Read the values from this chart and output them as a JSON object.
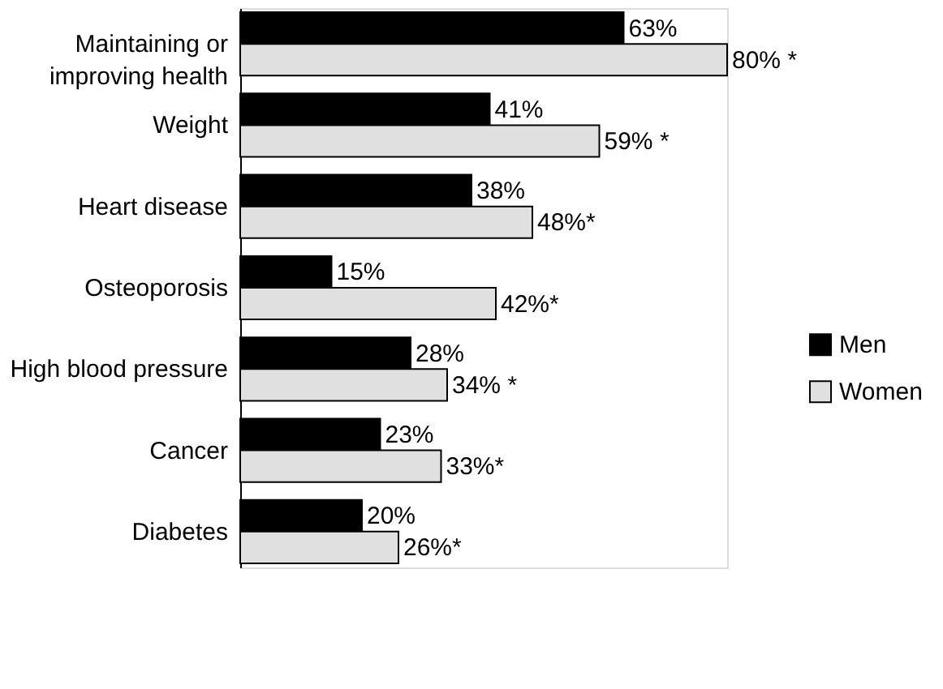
{
  "chart_data": {
    "type": "bar",
    "orientation": "horizontal",
    "categories": [
      "Maintaining or\nimproving health",
      "Weight",
      "Heart disease",
      "Osteoporosis",
      "High blood pressure",
      "Cancer",
      "Diabetes"
    ],
    "series": [
      {
        "name": "Men",
        "color": "#000000",
        "values": [
          63,
          41,
          38,
          15,
          28,
          23,
          20
        ],
        "value_labels": [
          "63%",
          "41%",
          "38%",
          "15%",
          "28%",
          "23%",
          "20%"
        ]
      },
      {
        "name": "Women",
        "color": "#e0e0e0",
        "values": [
          80,
          59,
          48,
          42,
          34,
          33,
          26
        ],
        "value_labels": [
          "80% *",
          "59% *",
          "48%*",
          "42%*",
          "34% *",
          "33%*",
          "26%*"
        ]
      }
    ],
    "xlim": [
      0,
      80
    ],
    "legend": "right"
  }
}
